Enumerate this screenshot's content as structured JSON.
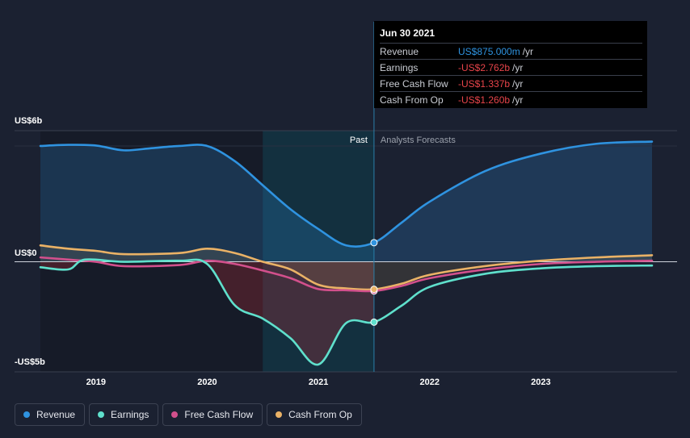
{
  "chart_data": {
    "type": "area",
    "y_axis": {
      "top_label": "US$6b",
      "zero_label": "US$0",
      "bottom_label": "-US$5b",
      "ylim": [
        -5,
        6
      ]
    },
    "x_axis": {
      "ticks": [
        "2019",
        "2020",
        "2021",
        "2022",
        "2023"
      ],
      "range": [
        2018.5,
        2024.0
      ]
    },
    "regions": {
      "past_label": "Past",
      "forecast_label": "Analysts Forecasts",
      "divider_x": 2021.5,
      "highlight_start": 2020.5
    },
    "series": [
      {
        "name": "Revenue",
        "color": "#2f93e0",
        "points": [
          [
            2018.5,
            5.3
          ],
          [
            2018.75,
            5.35
          ],
          [
            2019.0,
            5.32
          ],
          [
            2019.25,
            5.1
          ],
          [
            2019.5,
            5.2
          ],
          [
            2019.75,
            5.3
          ],
          [
            2020.0,
            5.3
          ],
          [
            2020.25,
            4.6
          ],
          [
            2020.5,
            3.5
          ],
          [
            2020.75,
            2.4
          ],
          [
            2021.0,
            1.5
          ],
          [
            2021.25,
            0.75
          ],
          [
            2021.5,
            0.875
          ],
          [
            2021.75,
            1.8
          ],
          [
            2022.0,
            2.75
          ],
          [
            2022.5,
            4.15
          ],
          [
            2023.0,
            4.95
          ],
          [
            2023.5,
            5.4
          ],
          [
            2024.0,
            5.5
          ]
        ]
      },
      {
        "name": "Earnings",
        "color": "#5fe0cc",
        "points": [
          [
            2018.5,
            -0.25
          ],
          [
            2018.75,
            -0.35
          ],
          [
            2018.9,
            0.1
          ],
          [
            2019.25,
            0.0
          ],
          [
            2019.75,
            0.05
          ],
          [
            2020.0,
            -0.1
          ],
          [
            2020.25,
            -2.0
          ],
          [
            2020.5,
            -2.6
          ],
          [
            2020.75,
            -3.5
          ],
          [
            2021.0,
            -4.7
          ],
          [
            2021.25,
            -2.8
          ],
          [
            2021.5,
            -2.762
          ],
          [
            2021.75,
            -2.0
          ],
          [
            2022.0,
            -1.15
          ],
          [
            2022.5,
            -0.55
          ],
          [
            2023.0,
            -0.3
          ],
          [
            2023.5,
            -0.2
          ],
          [
            2024.0,
            -0.17
          ]
        ]
      },
      {
        "name": "Free Cash Flow",
        "color": "#d2508c",
        "points": [
          [
            2018.5,
            0.2
          ],
          [
            2018.75,
            0.1
          ],
          [
            2019.0,
            0.0
          ],
          [
            2019.25,
            -0.2
          ],
          [
            2019.75,
            -0.15
          ],
          [
            2020.0,
            0.05
          ],
          [
            2020.25,
            -0.1
          ],
          [
            2020.5,
            -0.4
          ],
          [
            2020.75,
            -0.75
          ],
          [
            2021.0,
            -1.25
          ],
          [
            2021.25,
            -1.3
          ],
          [
            2021.5,
            -1.337
          ],
          [
            2021.75,
            -1.1
          ],
          [
            2022.0,
            -0.75
          ],
          [
            2022.5,
            -0.35
          ],
          [
            2023.0,
            -0.1
          ],
          [
            2023.5,
            0.0
          ],
          [
            2024.0,
            0.05
          ]
        ]
      },
      {
        "name": "Cash From Op",
        "color": "#eab266",
        "points": [
          [
            2018.5,
            0.75
          ],
          [
            2018.75,
            0.6
          ],
          [
            2019.0,
            0.5
          ],
          [
            2019.25,
            0.35
          ],
          [
            2019.75,
            0.4
          ],
          [
            2020.0,
            0.6
          ],
          [
            2020.25,
            0.4
          ],
          [
            2020.5,
            0.0
          ],
          [
            2020.75,
            -0.35
          ],
          [
            2021.0,
            -1.05
          ],
          [
            2021.25,
            -1.22
          ],
          [
            2021.5,
            -1.26
          ],
          [
            2021.75,
            -1.0
          ],
          [
            2022.0,
            -0.6
          ],
          [
            2022.5,
            -0.2
          ],
          [
            2023.0,
            0.05
          ],
          [
            2023.5,
            0.2
          ],
          [
            2024.0,
            0.3
          ]
        ]
      }
    ]
  },
  "tooltip": {
    "date": "Jun 30 2021",
    "rows": [
      {
        "label": "Revenue",
        "value": "US$875.000m",
        "unit": "/yr",
        "color": "#2f93e0"
      },
      {
        "label": "Earnings",
        "value": "-US$2.762b",
        "unit": "/yr",
        "color": "#e8444a"
      },
      {
        "label": "Free Cash Flow",
        "value": "-US$1.337b",
        "unit": "/yr",
        "color": "#e8444a"
      },
      {
        "label": "Cash From Op",
        "value": "-US$1.260b",
        "unit": "/yr",
        "color": "#e8444a"
      }
    ]
  },
  "legend": [
    {
      "label": "Revenue",
      "color": "#2f93e0"
    },
    {
      "label": "Earnings",
      "color": "#5fe0cc"
    },
    {
      "label": "Free Cash Flow",
      "color": "#d2508c"
    },
    {
      "label": "Cash From Op",
      "color": "#eab266"
    }
  ]
}
